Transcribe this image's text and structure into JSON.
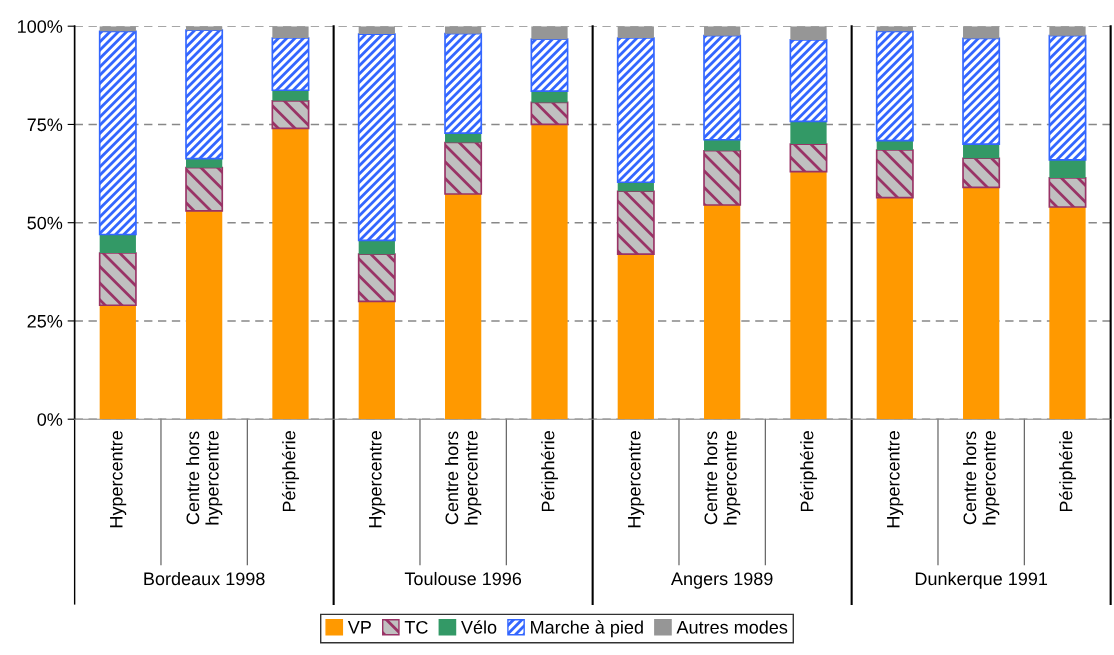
{
  "chart_data": {
    "type": "bar",
    "stacked": true,
    "categories": [
      "Hypercentre",
      "Centre hors\nhypercentre",
      "Périphérie",
      "Hypercentre",
      "Centre hors\nhypercentre",
      "Périphérie",
      "Hypercentre",
      "Centre hors\nhypercentre",
      "Périphérie",
      "Hypercentre",
      "Centre hors\nhypercentre",
      "Périphérie"
    ],
    "series": [
      {
        "name": "VP",
        "color": "#ff9900",
        "values": [
          29,
          53,
          74,
          30,
          57.3,
          75,
          42,
          54.5,
          63,
          56.4,
          59,
          54
        ]
      },
      {
        "name": "TC",
        "color": "#993366",
        "values": [
          13.3,
          11,
          7,
          12,
          13.1,
          5.6,
          16,
          13.8,
          7,
          12.1,
          7.4,
          7.4
        ]
      },
      {
        "name": "Vélo",
        "color": "#339966",
        "values": [
          4.7,
          2.3,
          2.7,
          3.5,
          2.4,
          2.9,
          2.3,
          2.8,
          5.8,
          2.4,
          3.6,
          4.6
        ]
      },
      {
        "name": "Marche à pied",
        "color": "#3366ff",
        "values": [
          51.7,
          32.7,
          13.3,
          52.5,
          25.3,
          13.2,
          36.7,
          26.5,
          20.7,
          27.8,
          26.9,
          31.6
        ]
      },
      {
        "name": "Autres modes",
        "color": "#969696",
        "values": [
          1.3,
          1,
          3,
          2,
          1.9,
          3.3,
          3,
          2.4,
          3.5,
          1.3,
          3.1,
          2.4
        ]
      }
    ],
    "ylim": [
      0,
      100
    ],
    "yticks": [
      {
        "value": 0,
        "label": "0%"
      },
      {
        "value": 25,
        "label": "25%"
      },
      {
        "value": 50,
        "label": "50%"
      },
      {
        "value": 75,
        "label": "75%"
      },
      {
        "value": 100,
        "label": "100%"
      }
    ],
    "grid": "y",
    "legend": "bottom",
    "annotations": [
      "Bordeaux 1998",
      "Toulouse 1996",
      "Angers 1989",
      "Dunkerque 1991"
    ]
  }
}
